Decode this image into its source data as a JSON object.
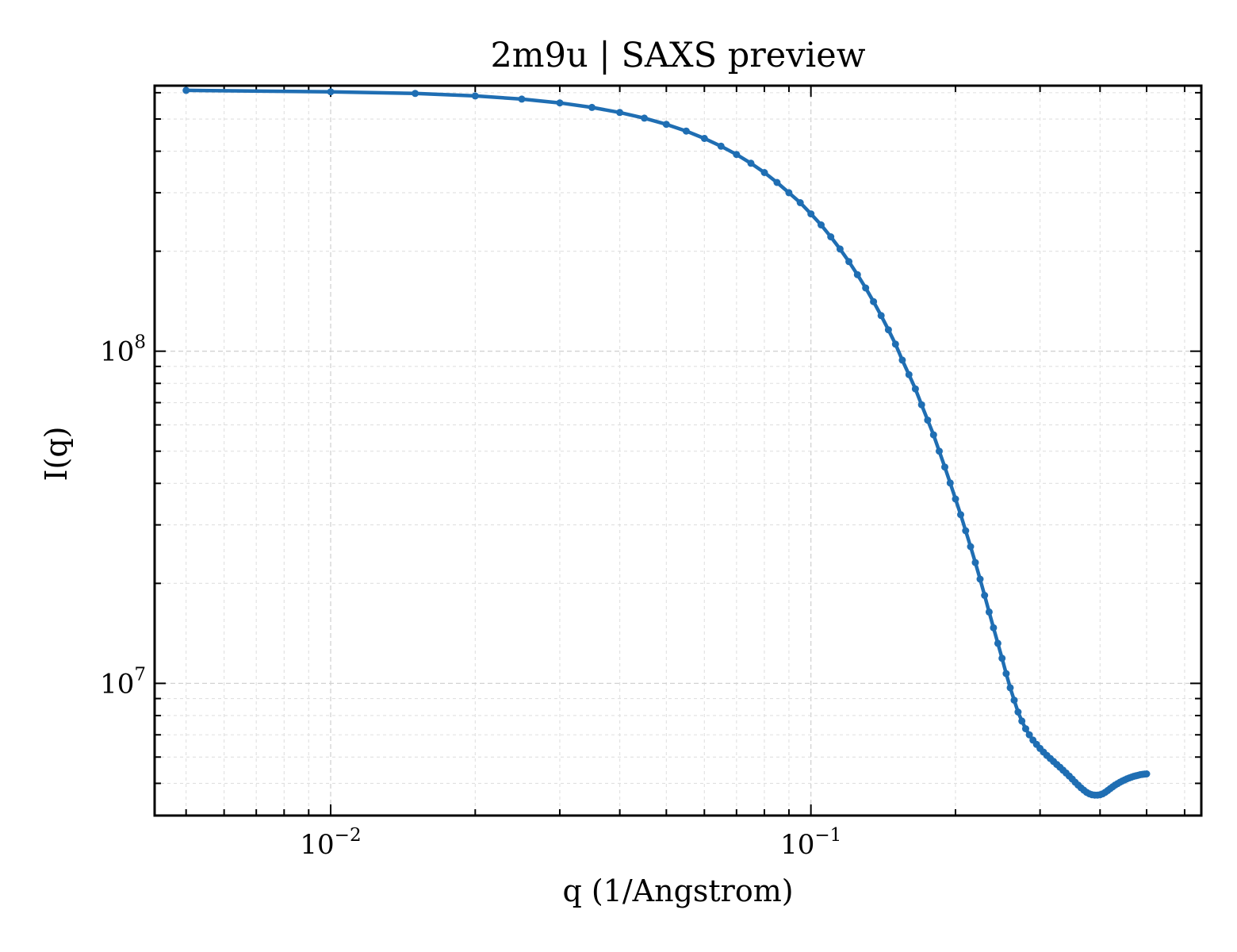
{
  "chart_data": {
    "type": "line",
    "title": "2m9u | SAXS preview",
    "xlabel": "q (1/Angstrom)",
    "ylabel": "I(q)",
    "xscale": "log",
    "yscale": "log",
    "xlim": [
      0.0043,
      0.65
    ],
    "ylim": [
      4000000,
      630000000
    ],
    "xticks": [
      {
        "value": 0.01,
        "base": "10",
        "exponent": "−2"
      },
      {
        "value": 0.1,
        "base": "10",
        "exponent": "−1"
      }
    ],
    "yticks": [
      {
        "value": 10000000,
        "base": "10",
        "exponent": "7"
      },
      {
        "value": 100000000,
        "base": "10",
        "exponent": "8"
      }
    ],
    "grid": true,
    "tick_direction": "in",
    "line_color": "#1f6eb3",
    "series": [
      {
        "x": [
          0.005,
          0.01,
          0.015,
          0.02,
          0.025,
          0.03,
          0.035,
          0.04,
          0.045,
          0.05,
          0.055,
          0.06,
          0.065,
          0.07,
          0.075,
          0.08,
          0.085,
          0.09,
          0.095,
          0.1,
          0.105,
          0.11,
          0.115,
          0.12,
          0.125,
          0.13,
          0.135,
          0.14,
          0.145,
          0.15,
          0.155,
          0.16,
          0.165,
          0.17,
          0.175,
          0.18,
          0.185,
          0.19,
          0.195,
          0.2,
          0.205,
          0.21,
          0.215,
          0.22,
          0.225,
          0.23,
          0.235,
          0.24,
          0.245,
          0.25,
          0.255,
          0.26,
          0.265,
          0.27,
          0.275,
          0.28,
          0.285,
          0.29,
          0.295,
          0.3,
          0.305,
          0.31,
          0.315,
          0.32,
          0.325,
          0.33,
          0.335,
          0.34,
          0.345,
          0.35,
          0.355,
          0.36,
          0.365,
          0.37,
          0.375,
          0.38,
          0.385,
          0.39,
          0.395,
          0.4,
          0.405,
          0.41,
          0.415,
          0.42,
          0.425,
          0.43,
          0.435,
          0.44,
          0.445,
          0.45,
          0.455,
          0.46,
          0.465,
          0.47,
          0.475,
          0.48,
          0.485,
          0.49,
          0.495,
          0.5
        ],
        "y": [
          610000000,
          604000000,
          597000000,
          587000000,
          574000000,
          559000000,
          542000000,
          523000000,
          503000000,
          482000000,
          460000000,
          437000000,
          414000000,
          391000000,
          368000000,
          345000000,
          322000000,
          300000000,
          280000000,
          259000000,
          240000000,
          221000000,
          203000000,
          186000000,
          170000000,
          155000000,
          141000000,
          128000000,
          116000000,
          105000000,
          94000000,
          85000000,
          77000000,
          69000000,
          62000000,
          56000000,
          50000000,
          44800000,
          40100000,
          35900000,
          32200000,
          28800000,
          25800000,
          23100000,
          20600000,
          18400000,
          16400000,
          14700000,
          13200000,
          11900000,
          10700000,
          9700000,
          8900000,
          8200000,
          7700000,
          7300000,
          7000000,
          6750000,
          6550000,
          6370000,
          6210000,
          6070000,
          5940000,
          5820000,
          5700000,
          5590000,
          5480000,
          5370000,
          5260000,
          5150000,
          5040000,
          4940000,
          4850000,
          4770000,
          4700000,
          4650000,
          4620000,
          4610000,
          4610000,
          4620000,
          4650000,
          4700000,
          4760000,
          4820000,
          4880000,
          4940000,
          4990000,
          5040000,
          5080000,
          5120000,
          5160000,
          5190000,
          5220000,
          5250000,
          5270000,
          5290000,
          5310000,
          5320000,
          5330000,
          5340000
        ]
      }
    ]
  }
}
